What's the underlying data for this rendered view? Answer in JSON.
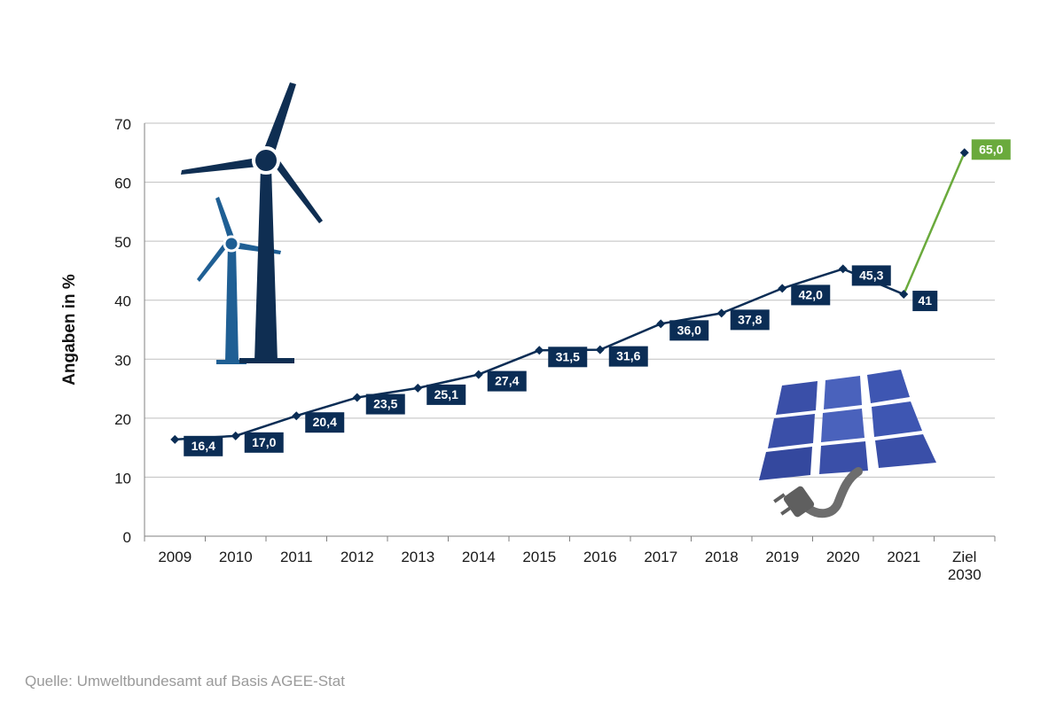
{
  "colors": {
    "line": "#0b2d55",
    "target": "#6aaa3c",
    "label_bg": "#0b2d55",
    "label_text": "#ffffff",
    "target_label_bg": "#6aaa3c",
    "grid": "#bfbfbf",
    "wind_dark": "#0f2e52",
    "wind_light": "#1f5f94",
    "solar_panel": "#3a4fa8",
    "plug": "#6d6d6d"
  },
  "icons": [
    "wind-turbine-icon",
    "solar-panel-icon",
    "plug-icon"
  ],
  "chart_data": {
    "type": "line",
    "title": "",
    "xlabel": "",
    "ylabel": "Angaben in %",
    "ylim": [
      0,
      70
    ],
    "yticks": [
      0,
      10,
      20,
      30,
      40,
      50,
      60,
      70
    ],
    "grid": true,
    "categories": [
      "2009",
      "2010",
      "2011",
      "2012",
      "2013",
      "2014",
      "2015",
      "2016",
      "2017",
      "2018",
      "2019",
      "2020",
      "2021",
      "Ziel 2030"
    ],
    "series": [
      {
        "values": [
          16.4,
          17.0,
          20.4,
          23.5,
          25.1,
          27.4,
          31.5,
          31.6,
          36.0,
          37.8,
          42.0,
          45.3,
          41,
          null
        ],
        "labels": [
          "16,4",
          "17,0",
          "20,4",
          "23,5",
          "25,1",
          "27,4",
          "31,5",
          "31,6",
          "36,0",
          "37,8",
          "42,0",
          "45,3",
          "41",
          ""
        ]
      }
    ],
    "target": {
      "category": "Ziel 2030",
      "value": 65.0,
      "label": "65,0",
      "from_category": "2021",
      "from_value": 41
    }
  },
  "source": "Quelle: Umweltbundesamt auf Basis AGEE-Stat"
}
